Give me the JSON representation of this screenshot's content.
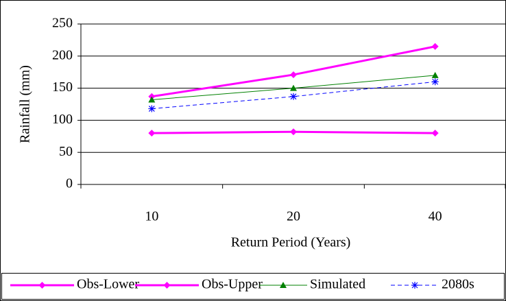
{
  "chart_data": {
    "type": "line",
    "x_label": "Return Period (Years)",
    "y_label": "Rainfall (mm)",
    "categories": [
      "10",
      "20",
      "40"
    ],
    "series": [
      {
        "name": "Obs-Lower",
        "color": "#ff00ff",
        "marker": "diamond",
        "line_width": 3,
        "dashed": false,
        "values": [
          80,
          82,
          80
        ]
      },
      {
        "name": "Obs-Upper",
        "color": "#ff00ff",
        "marker": "diamond",
        "line_width": 3,
        "dashed": false,
        "values": [
          137,
          171,
          215
        ]
      },
      {
        "name": "Simulated",
        "color": "#008000",
        "marker": "triangle",
        "line_width": 1,
        "dashed": false,
        "values": [
          132,
          150,
          170
        ]
      },
      {
        "name": "2080s",
        "color": "#0000ff",
        "marker": "asterisk",
        "line_width": 1,
        "dashed": true,
        "values": [
          118,
          137,
          160
        ]
      }
    ],
    "ylim": [
      0,
      250
    ],
    "yticks": [
      0,
      50,
      100,
      150,
      200,
      250
    ],
    "grid": true,
    "legend": "bottom"
  }
}
